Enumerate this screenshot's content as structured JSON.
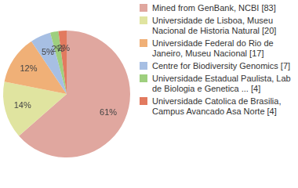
{
  "chart_data": {
    "type": "pie",
    "categories": [
      "Mined from GenBank, NCBI [83]",
      "Universidade de Lisboa, Museu Nacional de Historia Natural [20]",
      "Universidade Federal do Rio de Janeiro, Museu Nacional [17]",
      "Centre for Biodiversity Genomics [7]",
      "Universidade Estadual Paulista, Lab de Biologia e Genetica ... [4]",
      "Universidade Catolica de Brasilia, Campus Avancado Asa Norte [4]"
    ],
    "values": [
      61,
      14,
      12,
      5,
      2,
      2
    ],
    "value_labels": [
      "61%",
      "14%",
      "12%",
      "5%",
      "2%",
      "2%"
    ],
    "colors": [
      "#e0a79f",
      "#e0e4a0",
      "#f0b077",
      "#a7bfe3",
      "#9ecf7e",
      "#e27a5f"
    ],
    "data_labels": true,
    "legend": "right"
  }
}
